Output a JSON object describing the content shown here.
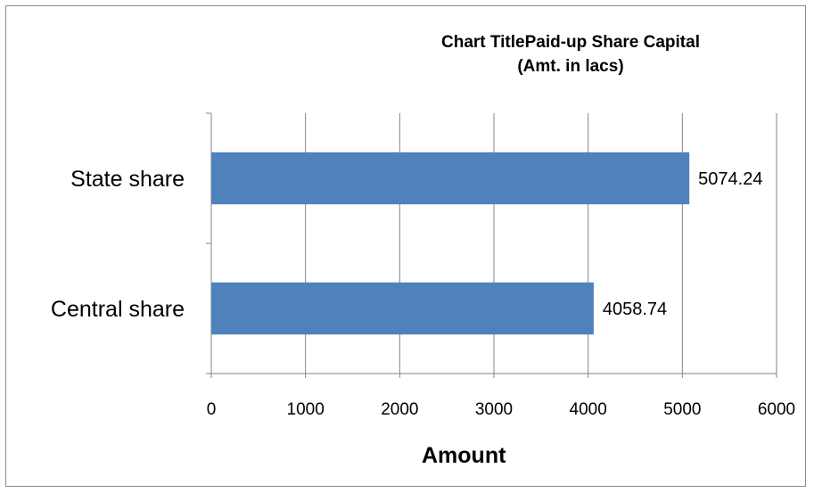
{
  "chart_data": {
    "type": "bar",
    "orientation": "horizontal",
    "title_line1": "Chart TitlePaid-up Share Capital",
    "title_line2": "(Amt. in lacs)",
    "xlabel": "Amount",
    "ylabel": "",
    "categories": [
      "State share",
      "Central share"
    ],
    "values": [
      5074.24,
      4058.74
    ],
    "value_labels": [
      "5074.24",
      "4058.74"
    ],
    "xlim": [
      0,
      6000
    ],
    "x_ticks": [
      "0",
      "1000",
      "2000",
      "3000",
      "4000",
      "5000",
      "6000"
    ],
    "grid": "vertical",
    "legend": "none",
    "bar_color": "#4f81bd",
    "grid_color": "#868686"
  }
}
